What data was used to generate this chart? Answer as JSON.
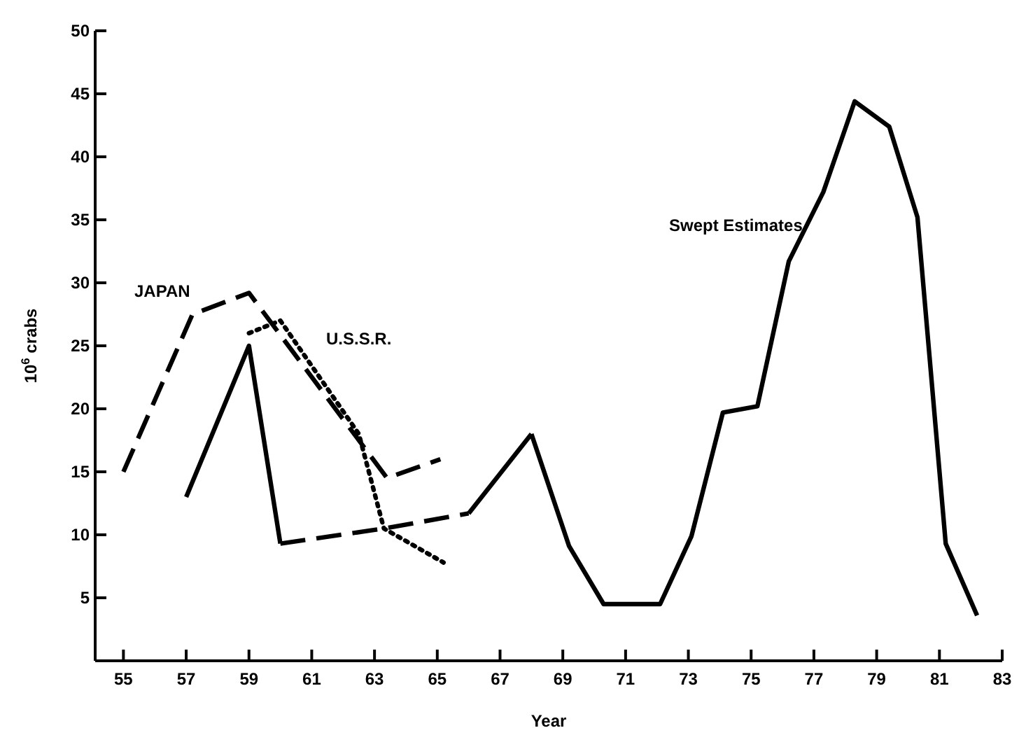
{
  "chart_data": {
    "type": "line",
    "xlabel": "Year",
    "ylabel": "10$^{6}$ crabs",
    "xlim": [
      54.1,
      83
    ],
    "xticks": [
      55,
      57,
      59,
      61,
      63,
      65,
      67,
      69,
      71,
      73,
      75,
      77,
      79,
      81,
      83
    ],
    "ylim": [
      0,
      50
    ],
    "yticks": [
      5,
      10,
      15,
      20,
      25,
      30,
      35,
      40,
      45,
      50
    ],
    "grid": false,
    "marker": "none",
    "series": [
      {
        "name": "JAPAN",
        "color": "#000000",
        "line_style": "dashed",
        "x": [
          55,
          57.2,
          59,
          63.4,
          65.1
        ],
        "values": [
          15,
          27.5,
          29.2,
          14.5,
          16
        ]
      },
      {
        "name": "U.S.S.R.",
        "color": "#000000",
        "line_style": "dotted",
        "x": [
          59,
          60,
          62.5,
          63.3,
          65.2
        ],
        "values": [
          26,
          27,
          18,
          10.5,
          7.8
        ]
      },
      {
        "name": "Swept Estimates",
        "color": "#000000",
        "line_style": "solid",
        "x": [
          57,
          59,
          60,
          66,
          68,
          69.2,
          70.3,
          72.1,
          73.1,
          74.1,
          75.2,
          76.2,
          77.3,
          78.3,
          79.4,
          80.3,
          81.2,
          82.2
        ],
        "values": [
          13,
          25,
          9.3,
          null,
          18,
          9.1,
          4.5,
          4.5,
          9.9,
          19.7,
          20.2,
          31.7,
          37.2,
          44.4,
          42.4,
          35.2,
          9.3,
          3.6
        ]
      },
      {
        "color": "#000000",
        "line_style": "dashed",
        "x": [
          60,
          63.3,
          66
        ],
        "values": [
          9.3,
          10.5,
          11.7
        ]
      },
      {
        "color": "#000000",
        "line_style": "solid",
        "x": [
          66,
          68
        ],
        "values": [
          11.7,
          18
        ]
      }
    ]
  }
}
